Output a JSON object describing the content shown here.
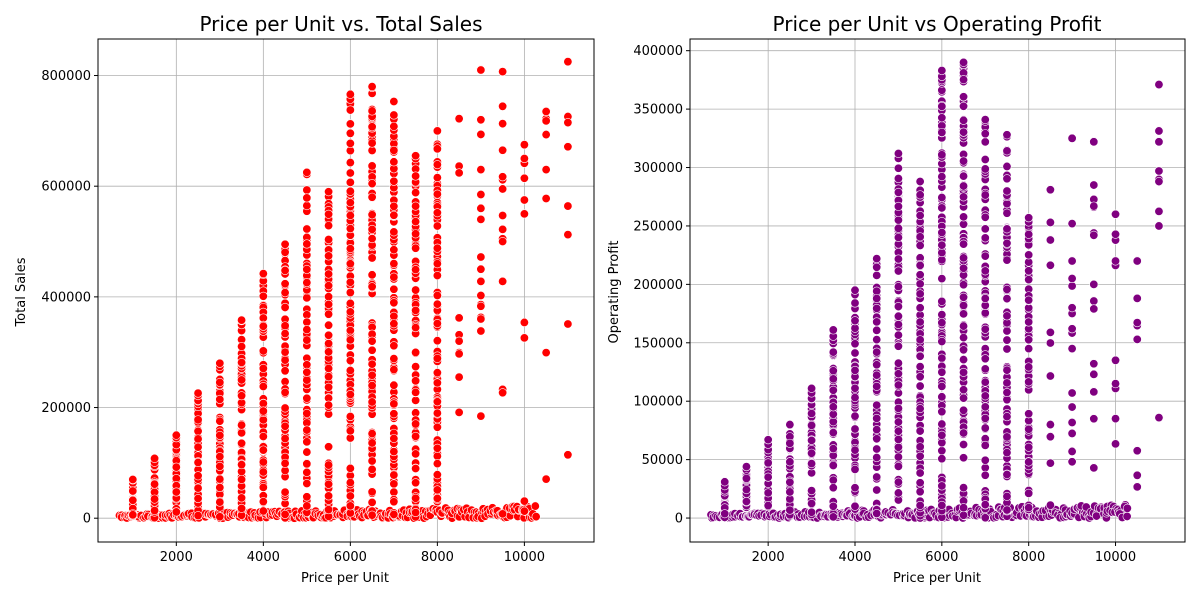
{
  "colors": {
    "left_points": "#ff0000",
    "right_points": "#800080",
    "grid": "#b0b0b0"
  },
  "chart_data": [
    {
      "type": "scatter",
      "title": "Price per Unit vs. Total Sales",
      "xlabel": "Price per Unit",
      "ylabel": "Total Sales",
      "xlim": [
        200,
        11600
      ],
      "ylim": [
        -43000,
        866000
      ],
      "xticks": [
        2000,
        4000,
        6000,
        8000,
        10000
      ],
      "yticks": [
        0,
        200000,
        400000,
        600000,
        800000
      ],
      "grid": true,
      "color": "#ff0000",
      "columns": [
        {
          "x": 1000,
          "max": 70000
        },
        {
          "x": 1500,
          "max": 108000
        },
        {
          "x": 2000,
          "max": 150000
        },
        {
          "x": 2500,
          "max": 226000
        },
        {
          "x": 3000,
          "max": 280000
        },
        {
          "x": 3500,
          "max": 358000
        },
        {
          "x": 4000,
          "max": 442000
        },
        {
          "x": 4500,
          "max": 495000
        },
        {
          "x": 5000,
          "max": 625000
        },
        {
          "x": 5500,
          "max": 590000
        },
        {
          "x": 6000,
          "max": 766000
        },
        {
          "x": 6500,
          "max": 780000
        },
        {
          "x": 7000,
          "max": 753000
        },
        {
          "x": 7500,
          "max": 655000
        },
        {
          "x": 8000,
          "max": 700000
        },
        {
          "x": 8500,
          "max": 722000
        },
        {
          "x": 9000,
          "max": 810000
        },
        {
          "x": 9500,
          "max": 807000
        },
        {
          "x": 10000,
          "max": 675000
        },
        {
          "x": 10500,
          "max": 735000
        },
        {
          "x": 11000,
          "max": 825000
        }
      ],
      "points": [
        {
          "x": 9000,
          "y": 810000
        },
        {
          "x": 9000,
          "y": 720000
        },
        {
          "x": 9000,
          "y": 630000
        },
        {
          "x": 9000,
          "y": 585000
        },
        {
          "x": 9000,
          "y": 560000
        },
        {
          "x": 9000,
          "y": 540000
        },
        {
          "x": 9000,
          "y": 472000
        },
        {
          "x": 9000,
          "y": 450000
        },
        {
          "x": 9000,
          "y": 428000
        },
        {
          "x": 9000,
          "y": 383000
        },
        {
          "x": 9000,
          "y": 360000
        },
        {
          "x": 9500,
          "y": 807000
        },
        {
          "x": 9500,
          "y": 713000
        },
        {
          "x": 9500,
          "y": 665000
        },
        {
          "x": 9500,
          "y": 617000
        },
        {
          "x": 9500,
          "y": 595000
        },
        {
          "x": 9500,
          "y": 547000
        },
        {
          "x": 9500,
          "y": 522000
        },
        {
          "x": 9500,
          "y": 500000
        },
        {
          "x": 9500,
          "y": 428000
        },
        {
          "x": 10000,
          "y": 675000
        },
        {
          "x": 10000,
          "y": 650000
        },
        {
          "x": 10000,
          "y": 575000
        },
        {
          "x": 10000,
          "y": 550000
        },
        {
          "x": 10500,
          "y": 735000
        },
        {
          "x": 10500,
          "y": 630000
        },
        {
          "x": 11000,
          "y": 825000
        },
        {
          "x": 11000,
          "y": 715000
        },
        {
          "x": 8500,
          "y": 320000
        },
        {
          "x": 8500,
          "y": 297000
        },
        {
          "x": 8500,
          "y": 255000
        }
      ],
      "low_band": {
        "x_start": 700,
        "x_end": 10300,
        "y_start": 0,
        "y_end": 22000
      }
    },
    {
      "type": "scatter",
      "title": "Price per Unit vs Operating Profit",
      "xlabel": "Price per Unit",
      "ylabel": "Operating Profit",
      "xlim": [
        200,
        11600
      ],
      "ylim": [
        -20500,
        410000
      ],
      "xticks": [
        2000,
        4000,
        6000,
        8000,
        10000
      ],
      "yticks": [
        0,
        50000,
        100000,
        150000,
        200000,
        250000,
        300000,
        350000,
        400000
      ],
      "grid": true,
      "color": "#800080",
      "columns": [
        {
          "x": 1000,
          "max": 31000
        },
        {
          "x": 1500,
          "max": 44000
        },
        {
          "x": 2000,
          "max": 67000
        },
        {
          "x": 2500,
          "max": 80000
        },
        {
          "x": 3000,
          "max": 111000
        },
        {
          "x": 3500,
          "max": 161000
        },
        {
          "x": 4000,
          "max": 195000
        },
        {
          "x": 4500,
          "max": 222000
        },
        {
          "x": 5000,
          "max": 312000
        },
        {
          "x": 5500,
          "max": 288000
        },
        {
          "x": 6000,
          "max": 383000
        },
        {
          "x": 6500,
          "max": 390000
        },
        {
          "x": 7000,
          "max": 341000
        },
        {
          "x": 7500,
          "max": 328000
        },
        {
          "x": 8000,
          "max": 257000
        },
        {
          "x": 8500,
          "max": 281000
        },
        {
          "x": 9000,
          "max": 325000
        },
        {
          "x": 9500,
          "max": 322000
        },
        {
          "x": 10000,
          "max": 260000
        },
        {
          "x": 10500,
          "max": 220000
        },
        {
          "x": 11000,
          "max": 371000
        }
      ],
      "points": [
        {
          "x": 9000,
          "y": 325000
        },
        {
          "x": 9000,
          "y": 252000
        },
        {
          "x": 9000,
          "y": 220000
        },
        {
          "x": 9000,
          "y": 205000
        },
        {
          "x": 9000,
          "y": 180000
        },
        {
          "x": 9000,
          "y": 162000
        },
        {
          "x": 9000,
          "y": 145000
        },
        {
          "x": 9000,
          "y": 107000
        },
        {
          "x": 9000,
          "y": 95000
        },
        {
          "x": 9000,
          "y": 57000
        },
        {
          "x": 9500,
          "y": 322000
        },
        {
          "x": 9500,
          "y": 285000
        },
        {
          "x": 9500,
          "y": 267000
        },
        {
          "x": 9500,
          "y": 242000
        },
        {
          "x": 9500,
          "y": 200000
        },
        {
          "x": 9500,
          "y": 179000
        },
        {
          "x": 9500,
          "y": 123000
        },
        {
          "x": 9500,
          "y": 108000
        },
        {
          "x": 9500,
          "y": 85000
        },
        {
          "x": 10000,
          "y": 260000
        },
        {
          "x": 10000,
          "y": 220000
        },
        {
          "x": 10000,
          "y": 135000
        },
        {
          "x": 10000,
          "y": 115000
        },
        {
          "x": 10500,
          "y": 220000
        },
        {
          "x": 10500,
          "y": 188000
        },
        {
          "x": 11000,
          "y": 371000
        },
        {
          "x": 11000,
          "y": 322000
        },
        {
          "x": 11000,
          "y": 288000
        },
        {
          "x": 11000,
          "y": 250000
        },
        {
          "x": 8500,
          "y": 281000
        },
        {
          "x": 8500,
          "y": 253000
        },
        {
          "x": 8500,
          "y": 238000
        },
        {
          "x": 8500,
          "y": 80000
        },
        {
          "x": 8500,
          "y": 47000
        }
      ],
      "low_band": {
        "x_start": 700,
        "x_end": 10300,
        "y_start": 0,
        "y_end": 12000
      }
    }
  ]
}
